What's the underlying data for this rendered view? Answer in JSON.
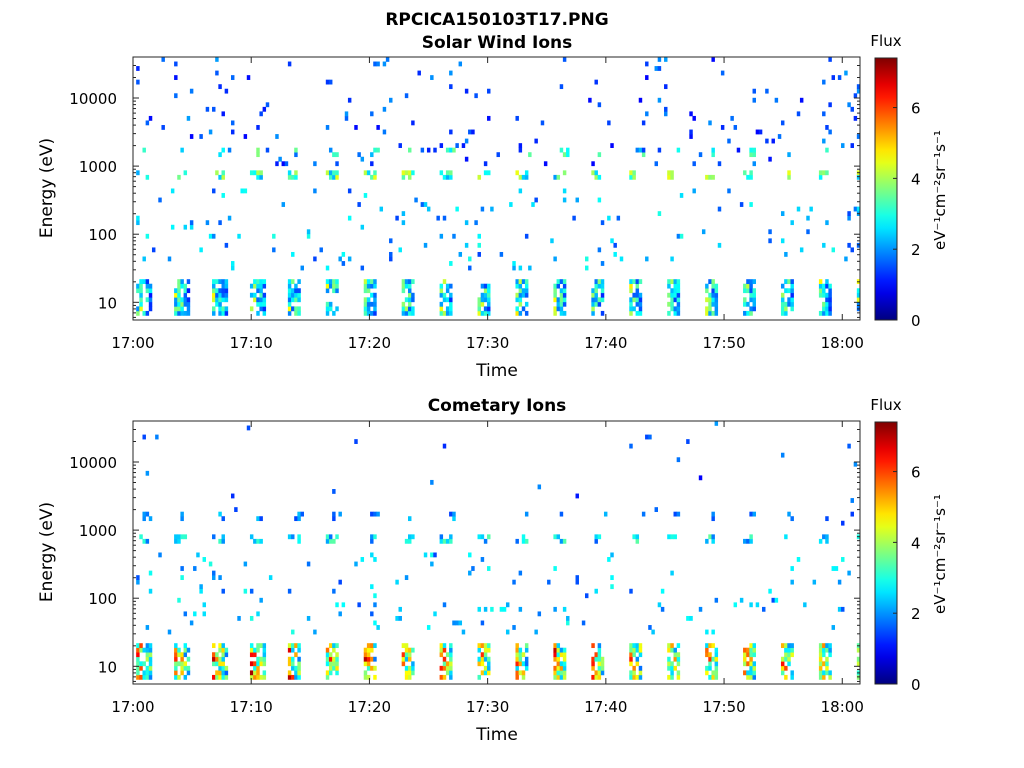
{
  "figure_title": "RPCICA150103T17.PNG",
  "colors": {
    "colormap": [
      "#00007f",
      "#0000ff",
      "#007fff",
      "#00ffff",
      "#7fff7f",
      "#ffff00",
      "#ff7f00",
      "#ff0000",
      "#7f0000"
    ]
  },
  "chart_data": [
    {
      "type": "heatmap",
      "title": "Solar Wind Ions",
      "xlabel": "Time",
      "ylabel": "Energy (eV)",
      "x_ticks": [
        "17:00",
        "17:10",
        "17:20",
        "17:30",
        "17:40",
        "17:50",
        "18:00"
      ],
      "x_range_minutes": [
        0,
        61.5
      ],
      "y_scale": "log",
      "y_range": [
        5.5,
        40000
      ],
      "y_ticks": [
        {
          "value": 10,
          "label": "10"
        },
        {
          "value": 100,
          "label": "100"
        },
        {
          "value": 1000,
          "label": "1000"
        },
        {
          "value": 10000,
          "label": "10000"
        }
      ],
      "colorbar": {
        "title": "Flux",
        "range": [
          0,
          7.4
        ],
        "ticks": [
          "0",
          "2",
          "4",
          "6"
        ],
        "unit_label": "eV⁻¹cm⁻²sr⁻¹s⁻¹"
      },
      "features": {
        "sweep_period_minutes": 3.2,
        "low_energy_band": {
          "energy": [
            6,
            22
          ],
          "flux_peak": 5.0
        },
        "mid_energy_band": {
          "energy": [
            600,
            900
          ],
          "flux_peak": 4.5
        },
        "upper_band": {
          "energy": [
            1400,
            1800
          ],
          "flux_peak": 3.8
        },
        "scatter_levels": [
          3000,
          10000,
          30000
        ]
      }
    },
    {
      "type": "heatmap",
      "title": "Cometary Ions",
      "xlabel": "Time",
      "ylabel": "Energy (eV)",
      "x_ticks": [
        "17:00",
        "17:10",
        "17:20",
        "17:30",
        "17:40",
        "17:50",
        "18:00"
      ],
      "x_range_minutes": [
        0,
        61.5
      ],
      "y_scale": "log",
      "y_range": [
        5.5,
        40000
      ],
      "y_ticks": [
        {
          "value": 10,
          "label": "10"
        },
        {
          "value": 100,
          "label": "100"
        },
        {
          "value": 1000,
          "label": "1000"
        },
        {
          "value": 10000,
          "label": "10000"
        }
      ],
      "colorbar": {
        "title": "Flux",
        "range": [
          0,
          7.4
        ],
        "ticks": [
          "0",
          "2",
          "4",
          "6"
        ],
        "unit_label": "eV⁻¹cm⁻²sr⁻¹s⁻¹"
      },
      "features": {
        "sweep_period_minutes": 3.2,
        "low_energy_band": {
          "energy": [
            6,
            22
          ],
          "flux_peak": 7.2
        },
        "mid_energy_band": {
          "energy": [
            650,
            900
          ],
          "flux_peak": 3.5
        },
        "upper_band": {
          "energy": [
            1400,
            1800
          ],
          "flux_peak": 2.5
        },
        "scatter_levels": [
          150,
          2000
        ]
      }
    }
  ]
}
